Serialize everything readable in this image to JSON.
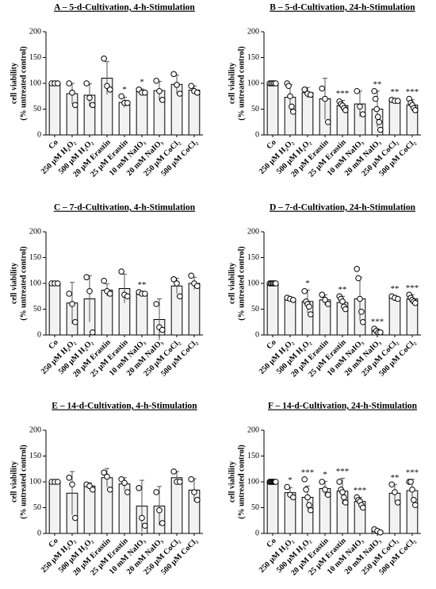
{
  "chart_data": [
    {
      "type": "bar",
      "title": "A – 5-d-Cultivation, 4-h-Stimulation",
      "ylabel": [
        "cell viability",
        "(% untreated control)"
      ],
      "categories": [
        "Co",
        "250 µM H₂O₂",
        "500 µM H₂O₂",
        "20 µM Erastin",
        "25 µM Erastin",
        "10 mM NaIO₃",
        "20 mM NaIO₃",
        "250 µM CoCl₂",
        "500 µM CoCl₂"
      ],
      "values": [
        100,
        80,
        77,
        110,
        63,
        84,
        86,
        98,
        87
      ],
      "errors": [
        2,
        20,
        22,
        32,
        10,
        5,
        18,
        18,
        8
      ],
      "points": [
        [
          100,
          100,
          100
        ],
        [
          100,
          82,
          58
        ],
        [
          100,
          72,
          58
        ],
        [
          148,
          95,
          88
        ],
        [
          75,
          62,
          62
        ],
        [
          88,
          82,
          82
        ],
        [
          105,
          85,
          68
        ],
        [
          118,
          97,
          80
        ],
        [
          95,
          85,
          82
        ]
      ],
      "annotations": [
        null,
        null,
        null,
        null,
        "*",
        "*",
        null,
        null,
        null
      ],
      "ylim": [
        0,
        200
      ],
      "yticks": [
        0,
        50,
        100,
        150,
        200
      ],
      "color": "#f2f2f2"
    },
    {
      "type": "bar",
      "title": "B – 5-d-Cultivation, 24-h-Stimulation",
      "ylabel": [
        "cell viability",
        "(% untreated control)"
      ],
      "categories": [
        "Co",
        "250 µM H₂O₂",
        "500 µM H₂O₂",
        "20 µM Erastin",
        "25 µM Erastin",
        "10 mM NaIO₃",
        "20 mM NaIO₃",
        "250 µM CoCl₂",
        "500 µM CoCl₂"
      ],
      "values": [
        100,
        73,
        82,
        70,
        57,
        60,
        50,
        67,
        58
      ],
      "errors": [
        2,
        25,
        10,
        40,
        10,
        25,
        35,
        3,
        10
      ],
      "points": [
        [
          100,
          100,
          100,
          100,
          100
        ],
        [
          100,
          95,
          75,
          55,
          45
        ],
        [
          88,
          80,
          78
        ],
        [
          90,
          70,
          25
        ],
        [
          65,
          60,
          57,
          52,
          48
        ],
        [
          85,
          55,
          40
        ],
        [
          85,
          70,
          50,
          35,
          25,
          10
        ],
        [
          68,
          66,
          66
        ],
        [
          70,
          62,
          58,
          52,
          48
        ]
      ],
      "annotations": [
        null,
        null,
        null,
        null,
        "***",
        null,
        "**",
        "**",
        "***"
      ],
      "ylim": [
        0,
        200
      ],
      "yticks": [
        0,
        50,
        100,
        150,
        200
      ],
      "color": "#f2f2f2"
    },
    {
      "type": "bar",
      "title": "C – 7-d-Cultivation, 4-h-Stimulation",
      "ylabel": [
        "cell viability",
        "(% untreated control)"
      ],
      "categories": [
        "Co",
        "250 µM H₂O₂",
        "500 µM H₂O₂",
        "20 µM Erastin",
        "25 µM Erastin",
        "10 mM NaIO₃",
        "20 mM NaIO₃",
        "250 µM CoCl₂",
        "500 µM CoCl₂"
      ],
      "values": [
        100,
        62,
        70,
        87,
        90,
        81,
        30,
        95,
        100
      ],
      "errors": [
        2,
        40,
        45,
        12,
        28,
        3,
        40,
        15,
        12
      ],
      "points": [
        [
          100,
          100,
          100
        ],
        [
          80,
          60,
          25
        ],
        [
          112,
          85,
          5
        ],
        [
          105,
          85,
          80
        ],
        [
          123,
          78,
          75
        ],
        [
          83,
          80,
          80
        ],
        [
          60,
          15,
          10
        ],
        [
          108,
          100,
          75
        ],
        [
          115,
          100,
          95
        ]
      ],
      "annotations": [
        null,
        null,
        null,
        null,
        null,
        "**",
        null,
        null,
        null
      ],
      "ylim": [
        0,
        200
      ],
      "yticks": [
        0,
        50,
        100,
        150,
        200
      ],
      "color": "#f2f2f2"
    },
    {
      "type": "bar",
      "title": "D – 7-d-Cultivation, 24-h-Stimulation",
      "ylabel": [
        "cell viability",
        "(% untreated control)"
      ],
      "categories": [
        "Co",
        "250 µM H₂O₂",
        "500 µM H₂O₂",
        "20 µM Erastin",
        "25 µM Erastin",
        "10 mM NaIO₃",
        "20 mM NaIO₃",
        "250 µM CoCl₂",
        "500 µM CoCl₂"
      ],
      "values": [
        100,
        70,
        65,
        68,
        63,
        70,
        8,
        73,
        70
      ],
      "errors": [
        2,
        3,
        22,
        10,
        12,
        42,
        4,
        3,
        8
      ],
      "points": [
        [
          100,
          100,
          100,
          100,
          100,
          100
        ],
        [
          72,
          70,
          68
        ],
        [
          85,
          65,
          60,
          55,
          40
        ],
        [
          78,
          68,
          60
        ],
        [
          75,
          70,
          65,
          55,
          50
        ],
        [
          128,
          110,
          70,
          45,
          25
        ],
        [
          12,
          8,
          5,
          5
        ],
        [
          75,
          72,
          70
        ],
        [
          78,
          72,
          68,
          65,
          62
        ]
      ],
      "annotations": [
        null,
        null,
        "*",
        null,
        "**",
        null,
        "***",
        "**",
        "***"
      ],
      "ylim": [
        0,
        200
      ],
      "yticks": [
        0,
        50,
        100,
        150,
        200
      ],
      "color": "#f2f2f2"
    },
    {
      "type": "bar",
      "title": "E – 14-d-Cultivation, 4-h-Stimulation",
      "ylabel": [
        "cell viability",
        "(% untreated control)"
      ],
      "categories": [
        "Co",
        "250 µM H₂O₂",
        "500 µM H₂O₂",
        "20 µM Erastin",
        "25 µM Erastin",
        "10 mM NaIO₃",
        "20 mM NaIO₃",
        "250 µM CoCl₂",
        "500 µM CoCl₂"
      ],
      "values": [
        100,
        78,
        92,
        108,
        96,
        53,
        53,
        108,
        84
      ],
      "errors": [
        2,
        42,
        6,
        18,
        12,
        50,
        38,
        12,
        22
      ],
      "points": [
        [
          100,
          100,
          100
        ],
        [
          108,
          95,
          30
        ],
        [
          95,
          92,
          85
        ],
        [
          118,
          110,
          85
        ],
        [
          105,
          98,
          80
        ],
        [
          88,
          30,
          15
        ],
        [
          80,
          45,
          20
        ],
        [
          120,
          100,
          100
        ],
        [
          105,
          80,
          65
        ]
      ],
      "annotations": [
        null,
        null,
        null,
        null,
        null,
        null,
        null,
        null,
        null
      ],
      "ylim": [
        0,
        200
      ],
      "yticks": [
        0,
        50,
        100,
        150,
        200
      ],
      "color": "#f2f2f2"
    },
    {
      "type": "bar",
      "title": "F – 14-d-Cultivation, 24-h-Stimulation",
      "ylabel": [
        "cell viability",
        "(% untreated control)"
      ],
      "categories": [
        "Co",
        "250 µM H₂O₂",
        "500 µM H₂O₂",
        "20 µM Erastin",
        "25 µM Erastin",
        "10 mM NaIO₃",
        "20 mM NaIO₃",
        "250 µM CoCl₂",
        "500 µM CoCl₂"
      ],
      "values": [
        100,
        79,
        70,
        87,
        82,
        62,
        5,
        78,
        83
      ],
      "errors": [
        2,
        10,
        22,
        14,
        25,
        8,
        3,
        17,
        22
      ],
      "points": [
        [
          100,
          100,
          100,
          100,
          100,
          100,
          100,
          100
        ],
        [
          90,
          75,
          70
        ],
        [
          105,
          85,
          70,
          55,
          45
        ],
        [
          100,
          85,
          75
        ],
        [
          100,
          85,
          80,
          70,
          60
        ],
        [
          70,
          65,
          62,
          55,
          50
        ],
        [
          8,
          5,
          2
        ],
        [
          95,
          80,
          60
        ],
        [
          100,
          100,
          85,
          65,
          55
        ]
      ],
      "annotations": [
        null,
        "*",
        "***",
        "*",
        "***",
        "***",
        null,
        "**",
        "***"
      ],
      "ylim": [
        0,
        200
      ],
      "yticks": [
        0,
        50,
        100,
        150,
        200
      ],
      "color": "#f2f2f2"
    }
  ]
}
